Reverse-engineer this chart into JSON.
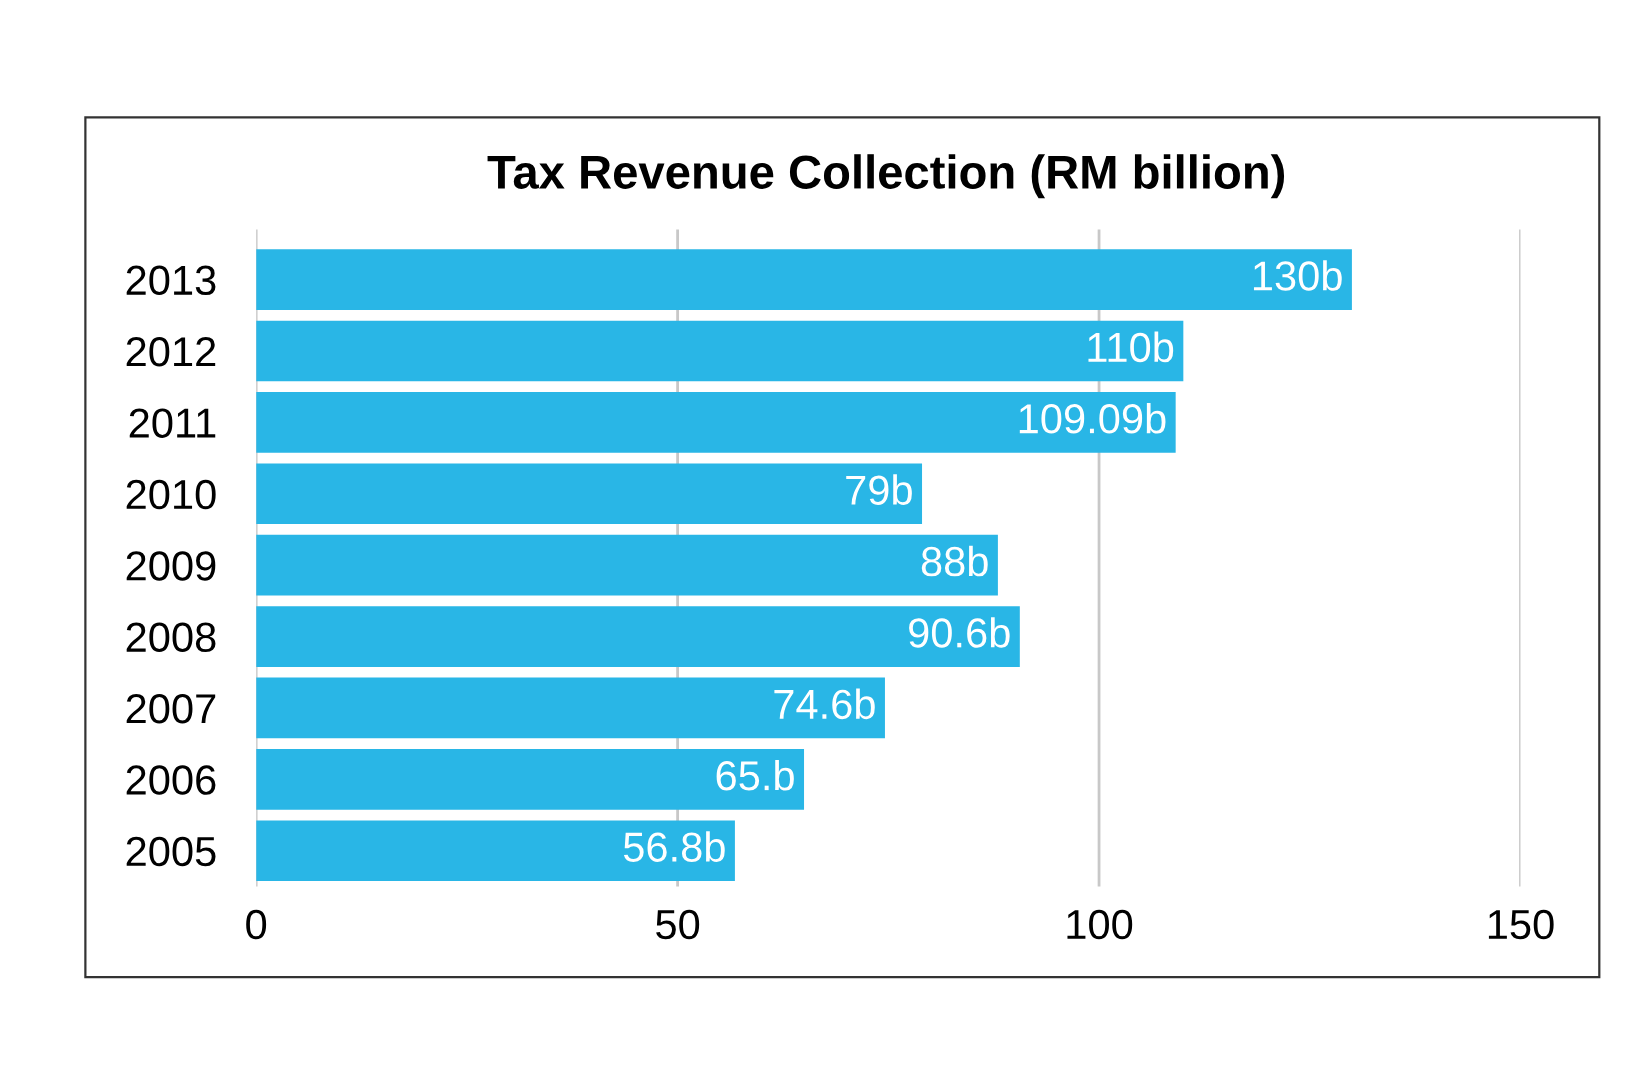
{
  "chart_data": {
    "type": "bar",
    "orientation": "horizontal",
    "title": "Tax Revenue Collection (RM billion)",
    "categories": [
      "2013",
      "2012",
      "2011",
      "2010",
      "2009",
      "2008",
      "2007",
      "2006",
      "2005"
    ],
    "values": [
      130,
      110,
      109.09,
      79,
      88,
      90.6,
      74.6,
      65,
      56.8
    ],
    "value_labels": [
      "130b",
      "110b",
      "109.09b",
      "79b",
      "88b",
      "90.6b",
      "74.6b",
      "65.b",
      "56.8b"
    ],
    "color": "#29b6e6",
    "xlim": [
      0,
      150
    ],
    "xticks": [
      0,
      50,
      100,
      150
    ],
    "grid": "x",
    "legend": false
  }
}
